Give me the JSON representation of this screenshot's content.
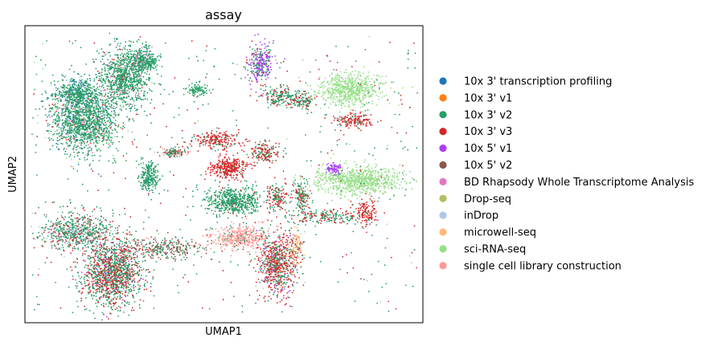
{
  "chart_data": {
    "type": "scatter",
    "title": "assay",
    "xlabel": "UMAP1",
    "ylabel": "UMAP2",
    "grid": false,
    "legend_placement": "right",
    "series": [
      {
        "name": "10x 3' transcription profiling",
        "color": "#1f77b4"
      },
      {
        "name": "10x 3' v1",
        "color": "#ff7f0e"
      },
      {
        "name": "10x 3' v2",
        "color": "#279e68"
      },
      {
        "name": "10x 3' v3",
        "color": "#d62728"
      },
      {
        "name": "10x 5' v1",
        "color": "#aa40fc"
      },
      {
        "name": "10x 5' v2",
        "color": "#8c564b"
      },
      {
        "name": "BD Rhapsody Whole Transcriptome Analysis",
        "color": "#e377c2"
      },
      {
        "name": "Drop-seq",
        "color": "#b5bd61"
      },
      {
        "name": "inDrop",
        "color": "#aec7e8"
      },
      {
        "name": "microwell-seq",
        "color": "#ffbb78"
      },
      {
        "name": "sci-RNA-seq",
        "color": "#98df8a"
      },
      {
        "name": "single cell library construction",
        "color": "#ff9896"
      }
    ]
  }
}
